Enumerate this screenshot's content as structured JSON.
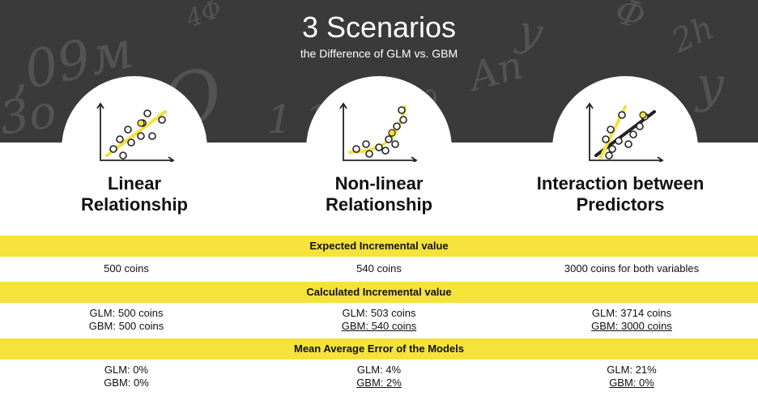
{
  "header": {
    "title": "3 Scenarios",
    "subtitle": "the Difference of GLM vs. GBM"
  },
  "colors": {
    "accent_yellow": "#f5e23a",
    "header_bg": "#3a3a3a",
    "line_dark": "#222222"
  },
  "scenarios": [
    {
      "icon": "linear-scatter-icon",
      "title_line1": "Linear",
      "title_line2": "Relationship",
      "expected": "500 coins",
      "calc_glm": "GLM: 500 coins",
      "calc_gbm": "GBM: 500 coins",
      "mae_glm": "GLM: 0%",
      "mae_gbm": "GBM: 0%"
    },
    {
      "icon": "nonlinear-scatter-icon",
      "title_line1": "Non-linear",
      "title_line2": "Relationship",
      "expected": "540 coins",
      "calc_glm": "GLM: 503 coins",
      "calc_gbm": "GBM: 540 coins",
      "mae_glm": "GLM: 4%",
      "mae_gbm": "GBM: 2%"
    },
    {
      "icon": "interaction-scatter-icon",
      "title_line1": "Interaction between",
      "title_line2": "Predictors",
      "expected": "3000 coins for both variables",
      "calc_glm": "GLM: 3714 coins",
      "calc_gbm": "GBM: 3000 coins",
      "mae_glm": "GLM: 21%",
      "mae_gbm": "GBM: 0%"
    }
  ],
  "sections": {
    "expected_label": "Expected Incremental value",
    "calculated_label": "Calculated Incremental value",
    "mae_label": "Mean Average Error of the Models"
  }
}
